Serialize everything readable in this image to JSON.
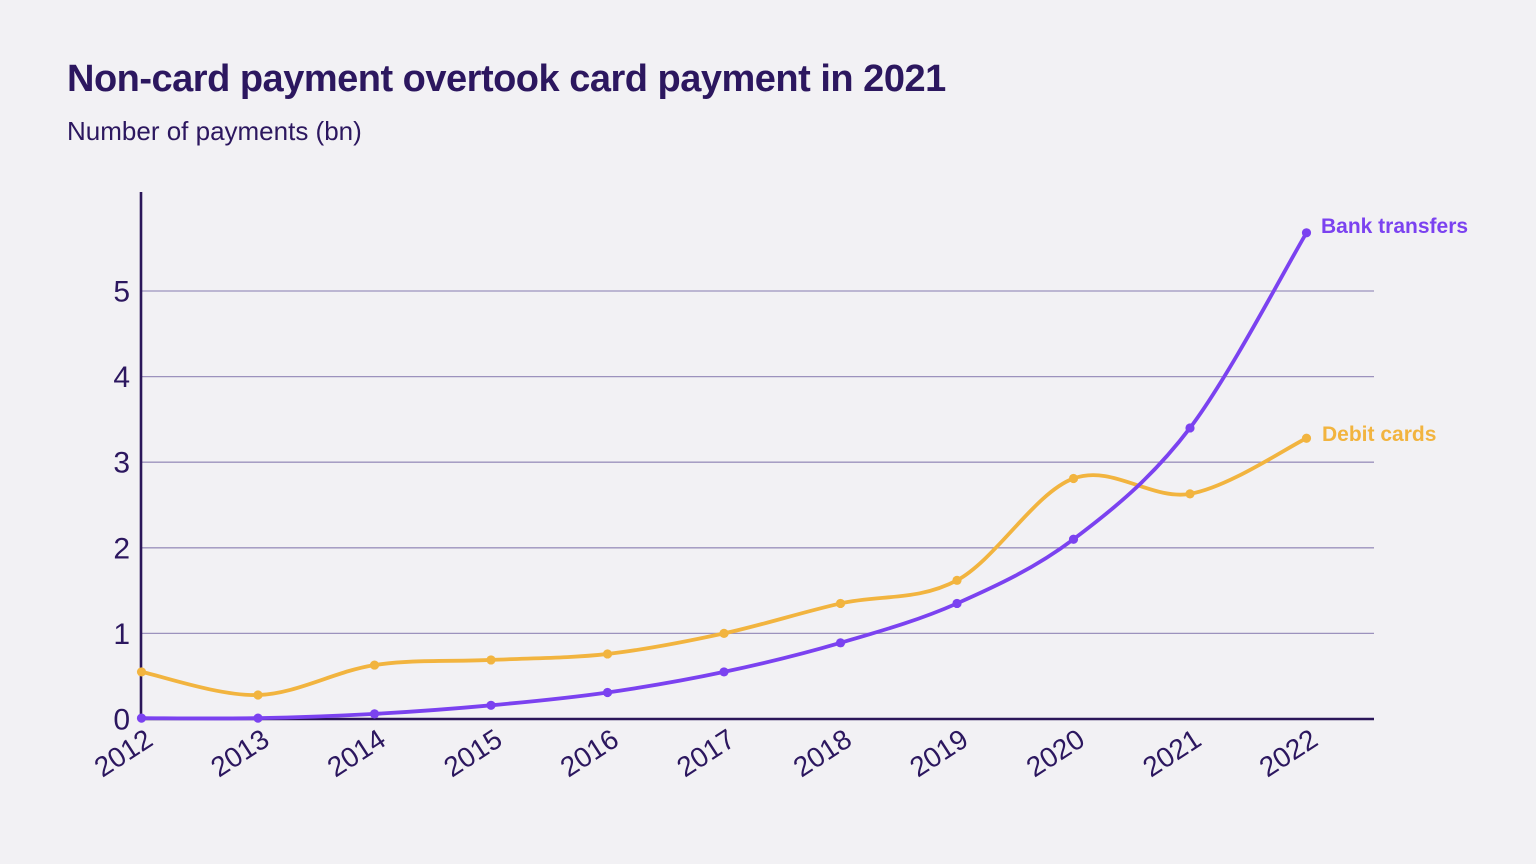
{
  "header": {
    "title": "Non-card payment overtook card payment in 2021",
    "subtitle": "Number of payments (bn)"
  },
  "colors": {
    "background": "#f2f1f4",
    "text_dark": "#2c175f",
    "axis": "#2b1659",
    "gridline": "#9c92bd"
  },
  "chart_data": {
    "type": "line",
    "title": "Non-card payment overtook card payment in 2021",
    "subtitle": "Number of payments (bn)",
    "xlabel": "",
    "ylabel": "Number of payments (bn)",
    "x": [
      "2012",
      "2013",
      "2014",
      "2015",
      "2016",
      "2017",
      "2018",
      "2019",
      "2020",
      "2021",
      "2022"
    ],
    "series": [
      {
        "name": "Bank transfers",
        "color": "#7b42f0",
        "values": [
          0.01,
          0.01,
          0.06,
          0.16,
          0.31,
          0.55,
          0.89,
          1.35,
          2.1,
          3.4,
          5.68
        ]
      },
      {
        "name": "Debit cards",
        "color": "#f2b43f",
        "values": [
          0.55,
          0.28,
          0.63,
          0.69,
          0.76,
          1.0,
          1.35,
          1.62,
          2.81,
          2.63,
          3.28
        ]
      }
    ],
    "ylim": [
      0,
      6.1
    ],
    "yticks": [
      0,
      1,
      2,
      3,
      4,
      5
    ],
    "grid": "horizontal",
    "legend_position": "line-end-labels",
    "x_tick_rotation_deg": -33
  }
}
